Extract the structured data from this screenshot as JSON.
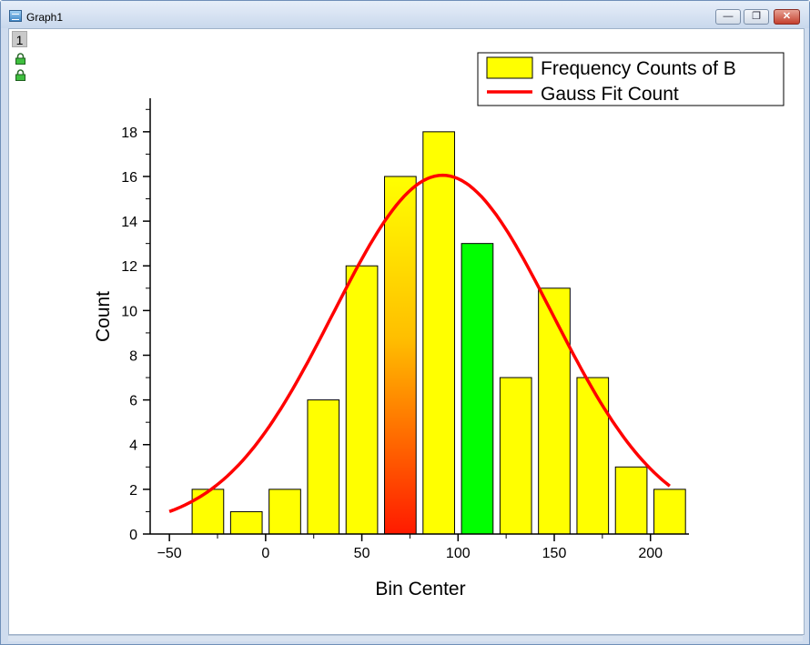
{
  "window": {
    "title": "Graph1",
    "layer_label": "1"
  },
  "chart_data": {
    "type": "bar",
    "x": [
      -30,
      -10,
      10,
      30,
      50,
      70,
      90,
      110,
      130,
      150,
      170,
      190,
      210
    ],
    "values": [
      2,
      1,
      2,
      6,
      12,
      16,
      18,
      13,
      7,
      11,
      7,
      3,
      2
    ],
    "bar_colors": [
      "#ffff00",
      "#ffff00",
      "#ffff00",
      "#ffff00",
      "#ffff00",
      "gradient-red-yellow",
      "#ffff00",
      "#00ff00",
      "#ffff00",
      "#ffff00",
      "#ffff00",
      "#ffff00",
      "#ffff00"
    ],
    "fit": {
      "name": "Gauss Fit Count",
      "color": "#ff0000",
      "y0": 0.3,
      "xc": 92,
      "w": 114,
      "A": 2251,
      "x_from": -50,
      "x_to": 210
    },
    "xlabel": "Bin Center",
    "ylabel": "Count",
    "xlim": [
      -60,
      220
    ],
    "ylim": [
      0,
      19.5
    ],
    "x_ticks": [
      -50,
      0,
      50,
      100,
      150,
      200
    ],
    "y_ticks": [
      0,
      2,
      4,
      6,
      8,
      10,
      12,
      14,
      16,
      18
    ],
    "legend": {
      "position": "top-right",
      "entries": [
        {
          "label": "Frequency Counts of B",
          "kind": "bar",
          "color": "#ffff00"
        },
        {
          "label": "Gauss Fit Count",
          "kind": "line",
          "color": "#ff0000"
        }
      ]
    }
  }
}
